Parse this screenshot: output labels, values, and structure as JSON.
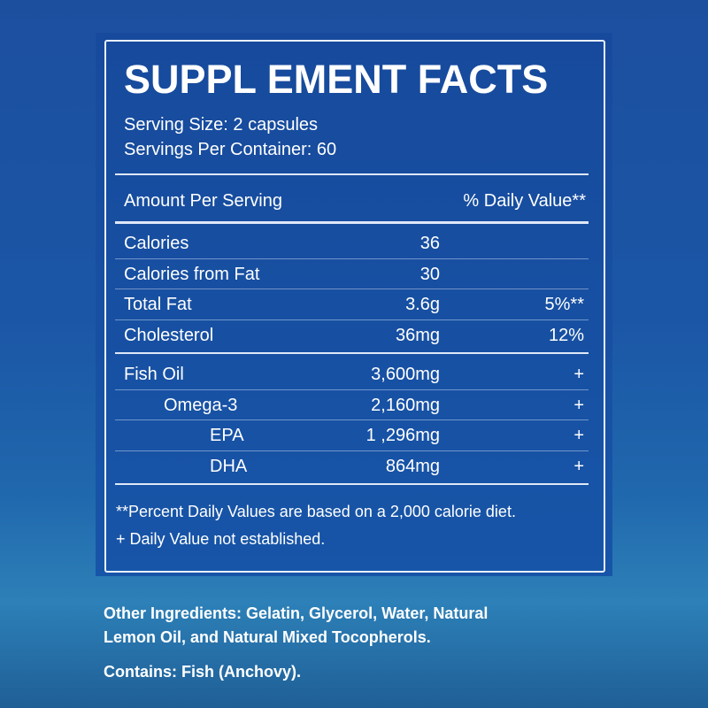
{
  "header": {
    "title": "SUPPL EMENT FACTS",
    "serving_size": "Serving Size: 2 capsules",
    "servings_per_container": "Servings Per Container: 60"
  },
  "table": {
    "columns": [
      "Amount Per Serving",
      "% Daily Value**"
    ],
    "sections": [
      {
        "rows": [
          {
            "name": "Calories",
            "amount": "36"
          },
          {
            "name": "Calories from Fat",
            "amount": "30"
          },
          {
            "name": "Total Fat",
            "amount": "3.6g",
            "daily_value": "5%**"
          },
          {
            "name": "Cholesterol",
            "amount": "36mg",
            "daily_value": "12%"
          }
        ]
      },
      {
        "rows": [
          {
            "name": "Fish Oil",
            "amount": "3,600mg",
            "daily_value": "+"
          },
          {
            "name": "Omega-3",
            "amount": "2,160mg",
            "daily_value": "+"
          },
          {
            "name": "EPA",
            "amount": "1 ,296mg",
            "daily_value": "+"
          },
          {
            "name": "DHA",
            "amount": "864mg",
            "daily_value": "+"
          }
        ]
      }
    ]
  },
  "footnotes": [
    "**Percent Daily Values are based on a 2,000 calorie diet.",
    "+ Daily Value not established."
  ],
  "other_ingredients": [
    "Other Ingredients:  Gelatin, Glycerol, Water, Natural",
    "Lemon Oil, and Natural Mixed Tocopherols."
  ],
  "contains": "Contains: Fish (Anchovy)."
}
